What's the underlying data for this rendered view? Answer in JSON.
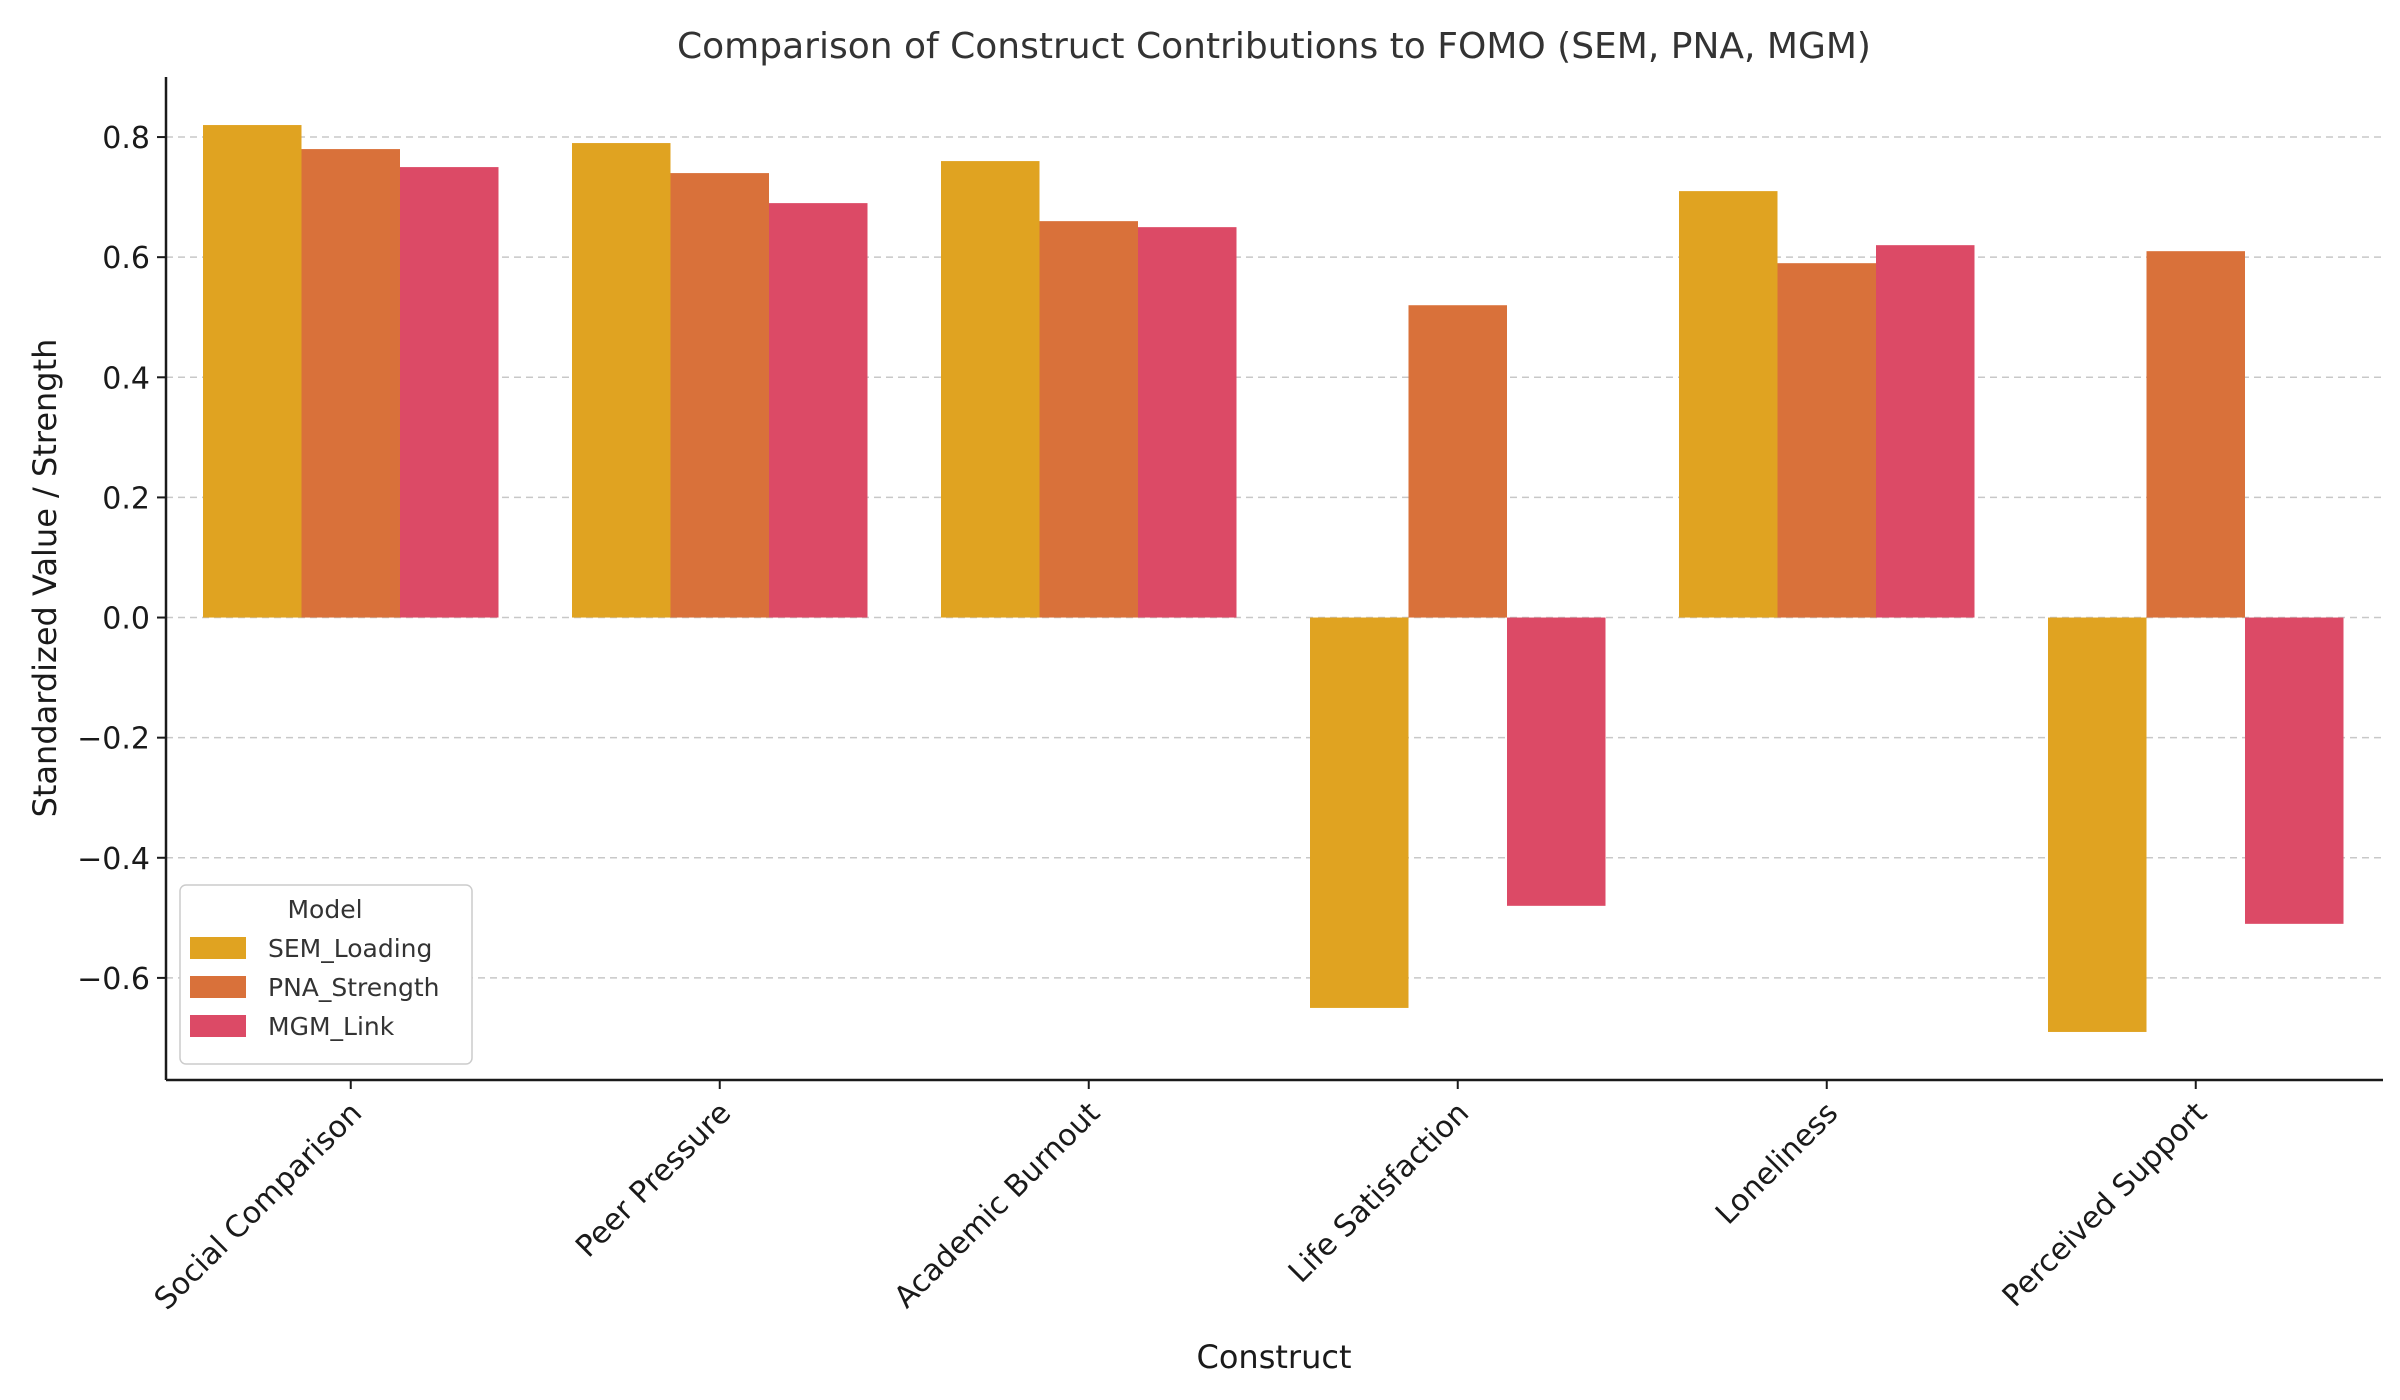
{
  "chart_data": {
    "type": "bar",
    "title": "Comparison of Construct Contributions to FOMO (SEM, PNA, MGM)",
    "xlabel": "Construct",
    "ylabel": "Standardized Value / Strength",
    "categories": [
      "Social Comparison",
      "Peer Pressure",
      "Academic Burnout",
      "Life Satisfaction",
      "Loneliness",
      "Perceived Support"
    ],
    "series": [
      {
        "name": "SEM_Loading",
        "color": "#e0a321",
        "values": [
          0.82,
          0.79,
          0.76,
          -0.65,
          0.71,
          -0.69
        ]
      },
      {
        "name": "PNA_Strength",
        "color": "#d9713a",
        "values": [
          0.78,
          0.74,
          0.66,
          0.52,
          0.59,
          0.61
        ]
      },
      {
        "name": "MGM_Link",
        "color": "#dc4a66",
        "values": [
          0.75,
          0.69,
          0.65,
          -0.48,
          0.62,
          -0.51
        ]
      }
    ],
    "yticks": [
      -0.6,
      -0.4,
      -0.2,
      0.0,
      0.2,
      0.4,
      0.6,
      0.8
    ],
    "ytick_labels": [
      "−0.6",
      "−0.4",
      "−0.2",
      "0.0",
      "0.2",
      "0.4",
      "0.6",
      "0.8"
    ],
    "ylim": [
      -0.77,
      0.9
    ],
    "grid": true,
    "legend": {
      "title": "Model",
      "placement": "bottom-left"
    }
  }
}
